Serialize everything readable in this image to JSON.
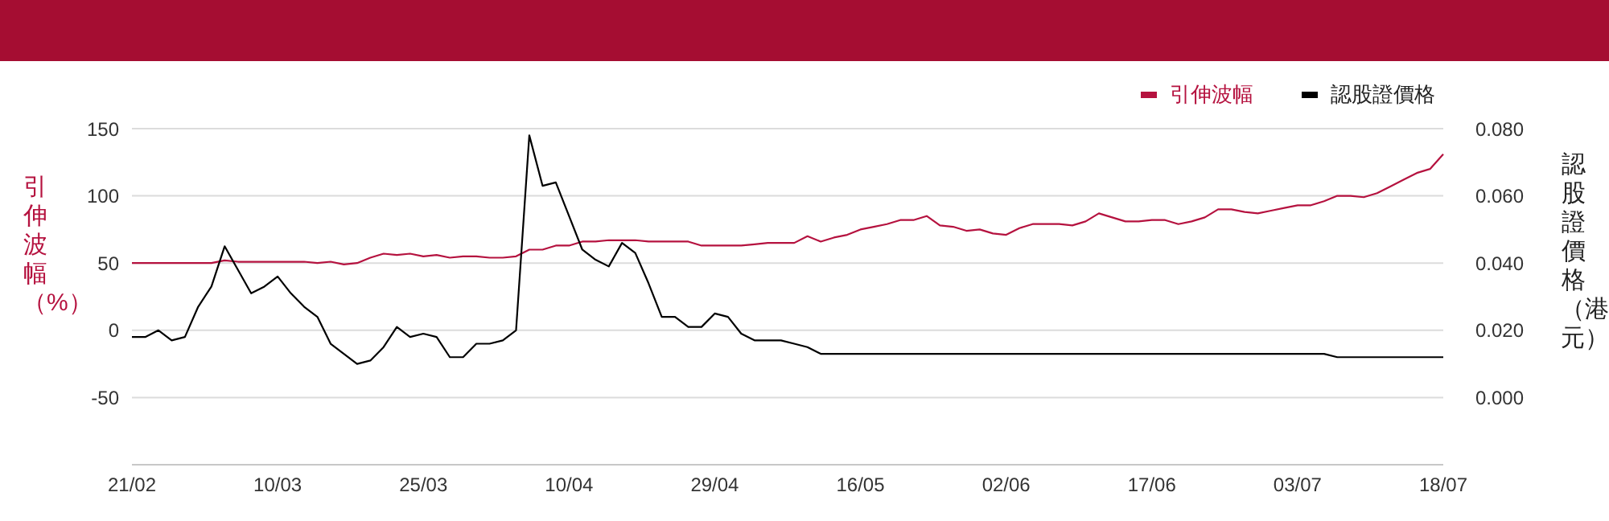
{
  "chart_data": {
    "type": "line",
    "ylabel": "引伸波幅（%）",
    "y2label": "認股證價格（港元）",
    "categories": [
      "21/02",
      null,
      null,
      null,
      null,
      null,
      null,
      null,
      null,
      null,
      null,
      "10/03",
      null,
      null,
      null,
      null,
      null,
      null,
      null,
      null,
      null,
      null,
      "25/03",
      null,
      null,
      null,
      null,
      null,
      null,
      null,
      null,
      null,
      null,
      "10/04",
      null,
      null,
      null,
      null,
      null,
      null,
      null,
      null,
      null,
      null,
      "29/04",
      null,
      null,
      null,
      null,
      null,
      null,
      null,
      null,
      null,
      null,
      "16/05",
      null,
      null,
      null,
      null,
      null,
      null,
      null,
      null,
      null,
      null,
      "02/06",
      null,
      null,
      null,
      null,
      null,
      null,
      null,
      null,
      null,
      null,
      "17/06",
      null,
      null,
      null,
      null,
      null,
      null,
      null,
      null,
      null,
      null,
      "03/07",
      null,
      null,
      null,
      null,
      null,
      null,
      null,
      null,
      null,
      null,
      "18/07"
    ],
    "series": [
      {
        "name": "引伸波幅",
        "color": "#b5123f",
        "axis": "y",
        "values": [
          50,
          50,
          50,
          50,
          50,
          50,
          50,
          52,
          51,
          51,
          51,
          51,
          51,
          51,
          50,
          51,
          49,
          50,
          54,
          57,
          56,
          57,
          55,
          56,
          54,
          55,
          55,
          54,
          54,
          55,
          60,
          60,
          63,
          63,
          66,
          66,
          67,
          67,
          67,
          66,
          66,
          66,
          66,
          63,
          63,
          63,
          63,
          64,
          65,
          65,
          65,
          70,
          66,
          69,
          71,
          75,
          77,
          79,
          82,
          82,
          85,
          78,
          77,
          74,
          75,
          72,
          71,
          76,
          79,
          79,
          79,
          78,
          81,
          87,
          84,
          81,
          81,
          82,
          82,
          79,
          81,
          84,
          90,
          90,
          88,
          87,
          89,
          91,
          93,
          93,
          96,
          100,
          100,
          99,
          102,
          107,
          112,
          117,
          120,
          131
        ]
      },
      {
        "name": "認股證價格",
        "color": "#000000",
        "axis": "y2",
        "values": [
          0.018,
          0.018,
          0.02,
          0.017,
          0.018,
          0.027,
          0.033,
          0.045,
          0.038,
          0.031,
          0.033,
          0.036,
          0.031,
          0.027,
          0.024,
          0.016,
          0.013,
          0.01,
          0.011,
          0.015,
          0.021,
          0.018,
          0.019,
          0.018,
          0.012,
          0.012,
          0.016,
          0.016,
          0.017,
          0.02,
          0.078,
          0.063,
          0.064,
          0.054,
          0.044,
          0.041,
          0.039,
          0.046,
          0.043,
          0.034,
          0.024,
          0.024,
          0.021,
          0.021,
          0.025,
          0.024,
          0.019,
          0.017,
          0.017,
          0.017,
          0.016,
          0.015,
          0.013,
          0.013,
          0.013,
          0.013,
          0.013,
          0.013,
          0.013,
          0.013,
          0.013,
          0.013,
          0.013,
          0.013,
          0.013,
          0.013,
          0.013,
          0.013,
          0.013,
          0.013,
          0.013,
          0.013,
          0.013,
          0.013,
          0.013,
          0.013,
          0.013,
          0.013,
          0.013,
          0.013,
          0.013,
          0.013,
          0.013,
          0.013,
          0.013,
          0.013,
          0.013,
          0.013,
          0.013,
          0.013,
          0.013,
          0.012,
          0.012,
          0.012,
          0.012,
          0.012,
          0.012,
          0.012,
          0.012,
          0.012
        ]
      }
    ],
    "ylim": [
      -100,
      150
    ],
    "yticks": [
      -50,
      0,
      50,
      100,
      150
    ],
    "y2lim": [
      -0.02,
      0.08
    ],
    "y2ticks": [
      {
        "value": 0,
        "label": "0.000"
      },
      {
        "value": 0.02,
        "label": "0.020"
      },
      {
        "value": 0.04,
        "label": "0.040"
      },
      {
        "value": 0.06,
        "label": "0.060"
      },
      {
        "value": 0.08,
        "label": "0.080"
      }
    ],
    "grid": "y",
    "legend": "top right",
    "marker": "none"
  }
}
